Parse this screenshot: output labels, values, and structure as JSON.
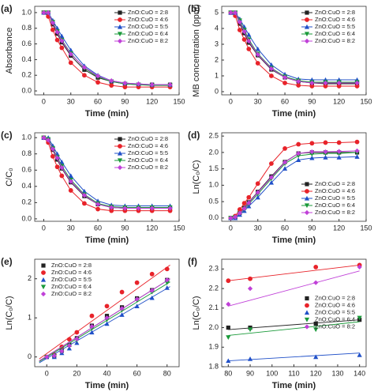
{
  "chart_data": [
    {
      "type": "line",
      "panel_label": "(a)",
      "x_label": "Time (min)",
      "y_label": "Absorbance",
      "legend": "upper right",
      "xlim": [
        -10,
        150
      ],
      "xticks": [
        0,
        30,
        60,
        90,
        120,
        150
      ],
      "ylim": [
        -0.05,
        1.08
      ],
      "yticks": [
        {
          "value": 0,
          "label": "0.0"
        },
        {
          "value": 0.2,
          "label": "0.2"
        },
        {
          "value": 0.4,
          "label": "0.4"
        },
        {
          "value": 0.6,
          "label": "0.6"
        },
        {
          "value": 0.8,
          "label": "0.8"
        },
        {
          "value": 1,
          "label": "1.0"
        }
      ],
      "x": [
        0,
        5,
        10,
        15,
        20,
        30,
        45,
        60,
        75,
        90,
        105,
        120,
        140
      ],
      "series": [
        {
          "name": "ZnO:CuO = 2:8",
          "color": "#222222",
          "values": [
            1.0,
            1.0,
            0.85,
            0.73,
            0.62,
            0.45,
            0.27,
            0.17,
            0.12,
            0.09,
            0.08,
            0.08,
            0.08
          ]
        },
        {
          "name": "ZnO:CuO = 4:6",
          "color": "#e8232a",
          "values": [
            1.0,
            0.95,
            0.78,
            0.65,
            0.55,
            0.36,
            0.2,
            0.11,
            0.07,
            0.05,
            0.05,
            0.05,
            0.05
          ]
        },
        {
          "name": "ZnO:CuO = 5:5",
          "color": "#2050c8",
          "values": [
            1.0,
            1.0,
            0.9,
            0.8,
            0.7,
            0.52,
            0.32,
            0.2,
            0.13,
            0.1,
            0.09,
            0.08,
            0.08
          ]
        },
        {
          "name": "ZnO:CuO = 6:4",
          "color": "#1a9a3a",
          "values": [
            1.0,
            1.0,
            0.88,
            0.76,
            0.65,
            0.48,
            0.29,
            0.18,
            0.12,
            0.09,
            0.08,
            0.07,
            0.07
          ]
        },
        {
          "name": "ZnO:CuO = 8:2",
          "color": "#c040d8",
          "values": [
            1.0,
            1.0,
            0.87,
            0.75,
            0.64,
            0.47,
            0.3,
            0.19,
            0.13,
            0.1,
            0.09,
            0.08,
            0.08
          ]
        }
      ]
    },
    {
      "type": "line",
      "panel_label": "(b)",
      "x_label": "Time (min)",
      "y_label": "MB concentration (ppm)",
      "legend": "upper right",
      "xlim": [
        -10,
        150
      ],
      "xticks": [
        0,
        30,
        60,
        90,
        120,
        150
      ],
      "ylim": [
        -0.2,
        5.4
      ],
      "yticks": [
        0,
        1,
        2,
        3,
        4,
        5
      ],
      "x": [
        0,
        5,
        10,
        15,
        20,
        30,
        45,
        60,
        75,
        90,
        105,
        120,
        140
      ],
      "series": [
        {
          "name": "ZnO:CuO = 2:8",
          "color": "#222222",
          "values": [
            5,
            5,
            4.3,
            3.7,
            3.1,
            2.3,
            1.4,
            0.9,
            0.65,
            0.55,
            0.5,
            0.5,
            0.5
          ]
        },
        {
          "name": "ZnO:CuO = 4:6",
          "color": "#e8232a",
          "values": [
            5,
            4.8,
            3.9,
            3.3,
            2.7,
            1.8,
            1.0,
            0.55,
            0.4,
            0.35,
            0.35,
            0.35,
            0.35
          ]
        },
        {
          "name": "ZnO:CuO = 5:5",
          "color": "#2050c8",
          "values": [
            5,
            5,
            4.6,
            4.1,
            3.6,
            2.7,
            1.7,
            1.1,
            0.8,
            0.75,
            0.75,
            0.75,
            0.75
          ]
        },
        {
          "name": "ZnO:CuO = 6:4",
          "color": "#1a9a3a",
          "values": [
            5,
            5,
            4.5,
            3.9,
            3.3,
            2.4,
            1.5,
            0.95,
            0.7,
            0.6,
            0.6,
            0.6,
            0.6
          ]
        },
        {
          "name": "ZnO:CuO = 8:2",
          "color": "#c040d8",
          "values": [
            5,
            5,
            4.4,
            3.8,
            3.2,
            2.35,
            1.45,
            0.9,
            0.65,
            0.55,
            0.55,
            0.55,
            0.55
          ]
        }
      ]
    },
    {
      "type": "line",
      "panel_label": "(c)",
      "x_label": "Time (min)",
      "y_label": "C/C₀",
      "legend": "upper right",
      "xlim": [
        -10,
        150
      ],
      "xticks": [
        0,
        30,
        60,
        90,
        120,
        150
      ],
      "ylim": [
        -0.03,
        1.06
      ],
      "yticks": [
        {
          "value": 0,
          "label": "0.0"
        },
        {
          "value": 0.2,
          "label": "0.2"
        },
        {
          "value": 0.4,
          "label": "0.4"
        },
        {
          "value": 0.6,
          "label": "0.6"
        },
        {
          "value": 0.8,
          "label": "0.8"
        },
        {
          "value": 1,
          "label": "1.0"
        }
      ],
      "x": [
        0,
        5,
        10,
        15,
        20,
        30,
        45,
        60,
        75,
        90,
        105,
        120,
        140
      ],
      "series": [
        {
          "name": "ZnO:CuO = 2:8",
          "color": "#222222",
          "values": [
            1,
            0.97,
            0.85,
            0.73,
            0.62,
            0.45,
            0.28,
            0.18,
            0.14,
            0.13,
            0.13,
            0.13,
            0.13
          ]
        },
        {
          "name": "ZnO:CuO = 4:6",
          "color": "#e8232a",
          "values": [
            1,
            0.94,
            0.77,
            0.64,
            0.53,
            0.35,
            0.19,
            0.12,
            0.1,
            0.1,
            0.1,
            0.1,
            0.1
          ]
        },
        {
          "name": "ZnO:CuO = 5:5",
          "color": "#2050c8",
          "values": [
            1,
            1,
            0.9,
            0.8,
            0.7,
            0.53,
            0.34,
            0.22,
            0.17,
            0.16,
            0.16,
            0.16,
            0.16
          ]
        },
        {
          "name": "ZnO:CuO = 6:4",
          "color": "#1a9a3a",
          "values": [
            1,
            0.98,
            0.87,
            0.76,
            0.65,
            0.48,
            0.3,
            0.19,
            0.15,
            0.14,
            0.14,
            0.14,
            0.14
          ]
        },
        {
          "name": "ZnO:CuO = 8:2",
          "color": "#c040d8",
          "values": [
            1,
            0.97,
            0.86,
            0.75,
            0.63,
            0.46,
            0.29,
            0.18,
            0.14,
            0.13,
            0.13,
            0.13,
            0.13
          ]
        }
      ]
    },
    {
      "type": "line",
      "panel_label": "(d)",
      "x_label": "Time (min)",
      "y_label": "Ln(C₀/C)",
      "legend": "lower right",
      "xlim": [
        -10,
        150
      ],
      "xticks": [
        0,
        30,
        60,
        90,
        120,
        150
      ],
      "ylim": [
        -0.1,
        2.6
      ],
      "yticks": [
        {
          "value": 0,
          "label": "0.0"
        },
        {
          "value": 0.5,
          "label": "0.5"
        },
        {
          "value": 1,
          "label": "1.0"
        },
        {
          "value": 1.5,
          "label": "1.5"
        },
        {
          "value": 2,
          "label": "2.0"
        },
        {
          "value": 2.5,
          "label": "2.5"
        }
      ],
      "x": [
        0,
        5,
        10,
        15,
        20,
        30,
        45,
        60,
        75,
        90,
        105,
        120,
        140
      ],
      "series": [
        {
          "name": "ZnO:CuO = 2:8",
          "color": "#222222",
          "values": [
            0,
            0.03,
            0.16,
            0.31,
            0.48,
            0.8,
            1.27,
            1.71,
            1.97,
            2.0,
            2.0,
            2.0,
            2.0
          ]
        },
        {
          "name": "ZnO:CuO = 4:6",
          "color": "#e8232a",
          "values": [
            0,
            0.06,
            0.26,
            0.45,
            0.63,
            1.05,
            1.66,
            2.12,
            2.25,
            2.28,
            2.3,
            2.3,
            2.32
          ]
        },
        {
          "name": "ZnO:CuO = 5:5",
          "color": "#2050c8",
          "values": [
            0,
            0,
            0.1,
            0.22,
            0.36,
            0.63,
            1.08,
            1.51,
            1.77,
            1.83,
            1.85,
            1.85,
            1.87
          ]
        },
        {
          "name": "ZnO:CuO = 6:4",
          "color": "#1a9a3a",
          "values": [
            0,
            0.02,
            0.14,
            0.27,
            0.43,
            0.73,
            1.2,
            1.66,
            1.9,
            1.95,
            1.97,
            1.97,
            2.0
          ]
        },
        {
          "name": "ZnO:CuO = 8:2",
          "color": "#c040d8",
          "values": [
            0,
            0.03,
            0.15,
            0.29,
            0.46,
            0.78,
            1.24,
            1.7,
            1.97,
            2.02,
            2.02,
            2.03,
            2.05
          ]
        }
      ]
    },
    {
      "type": "scatter",
      "panel_label": "(e)",
      "x_label": "Time (min)",
      "y_label": "Ln(C₀/C)",
      "legend": "upper left",
      "xlim": [
        -8,
        88
      ],
      "xticks": [
        0,
        20,
        40,
        60,
        80
      ],
      "ylim": [
        -0.25,
        2.5
      ],
      "yticks": [
        0,
        1,
        2
      ],
      "x": [
        0,
        5,
        10,
        15,
        20,
        30,
        40,
        50,
        60,
        70,
        80
      ],
      "fit_x": [
        -5,
        82
      ],
      "series": [
        {
          "name": "ZnO:CuO = 2:8",
          "color": "#222222",
          "values": [
            0,
            0.03,
            0.16,
            0.31,
            0.48,
            0.8,
            1.05,
            1.27,
            1.5,
            1.71,
            1.97
          ],
          "fit": [
            -0.1,
            2.0
          ]
        },
        {
          "name": "ZnO:CuO = 4:6",
          "color": "#e8232a",
          "values": [
            0,
            0.06,
            0.26,
            0.45,
            0.63,
            1.05,
            1.3,
            1.66,
            1.9,
            2.12,
            2.25
          ],
          "fit": [
            -0.05,
            2.35
          ]
        },
        {
          "name": "ZnO:CuO = 5:5",
          "color": "#2050c8",
          "values": [
            0,
            0,
            0.1,
            0.22,
            0.36,
            0.63,
            0.85,
            1.08,
            1.3,
            1.51,
            1.77
          ],
          "fit": [
            -0.15,
            1.8
          ]
        },
        {
          "name": "ZnO:CuO = 6:4",
          "color": "#1a9a3a",
          "values": [
            0,
            0.02,
            0.14,
            0.27,
            0.43,
            0.73,
            0.95,
            1.2,
            1.45,
            1.66,
            1.9
          ],
          "fit": [
            -0.12,
            1.92
          ]
        },
        {
          "name": "ZnO:CuO = 8:2",
          "color": "#c040d8",
          "values": [
            0,
            0.03,
            0.15,
            0.29,
            0.46,
            0.78,
            1.0,
            1.24,
            1.48,
            1.7,
            1.97
          ],
          "fit": [
            -0.1,
            2.0
          ]
        }
      ]
    },
    {
      "type": "scatter",
      "panel_label": "(f)",
      "x_label": "Time (min)",
      "y_label": "Ln(C₀/C)",
      "legend": "center right",
      "xlim": [
        77,
        143
      ],
      "xticks": [
        80,
        90,
        100,
        110,
        120,
        130,
        140
      ],
      "ylim": [
        1.8,
        2.35
      ],
      "yticks": [
        1.8,
        1.9,
        {
          "value": 2,
          "label": "2.0"
        },
        2.1,
        2.2,
        2.3
      ],
      "x": [
        80,
        90,
        120,
        140
      ],
      "fit_x": [
        80,
        140
      ],
      "series": [
        {
          "name": "ZnO:CuO = 2:8",
          "color": "#222222",
          "values": [
            2.0,
            2.0,
            2.02,
            2.04
          ],
          "fit": [
            1.99,
            2.04
          ]
        },
        {
          "name": "ZnO:CuO = 4:6",
          "color": "#e8232a",
          "values": [
            2.24,
            2.25,
            2.31,
            2.32
          ],
          "fit": [
            2.24,
            2.32
          ]
        },
        {
          "name": "ZnO:CuO = 5:5",
          "color": "#2050c8",
          "values": [
            1.83,
            1.84,
            1.85,
            1.86
          ],
          "fit": [
            1.83,
            1.87
          ]
        },
        {
          "name": "ZnO:CuO = 6:4",
          "color": "#1a9a3a",
          "values": [
            1.95,
            1.99,
            1.99,
            2.05
          ],
          "fit": [
            1.96,
            2.03
          ]
        },
        {
          "name": "ZnO:CuO = 8:2",
          "color": "#c040d8",
          "values": [
            2.12,
            2.2,
            2.23,
            2.31
          ],
          "fit": [
            2.11,
            2.29
          ]
        }
      ]
    }
  ]
}
